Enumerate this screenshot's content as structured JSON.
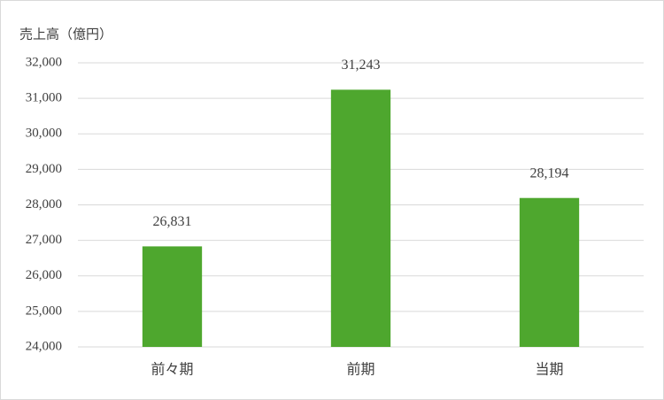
{
  "chart_data": {
    "type": "bar",
    "y_axis_label": "売上高（億円）",
    "categories": [
      "前々期",
      "前期",
      "当期"
    ],
    "values": [
      26831,
      31243,
      28194
    ],
    "value_labels": [
      "26,831",
      "31,243",
      "28,194"
    ],
    "color": "#4ea72e",
    "ylim": [
      24000,
      32000
    ],
    "yticks": [
      {
        "value": 24000,
        "label": "24,000"
      },
      {
        "value": 25000,
        "label": "25,000"
      },
      {
        "value": 26000,
        "label": "26,000"
      },
      {
        "value": 27000,
        "label": "27,000"
      },
      {
        "value": 28000,
        "label": "28,000"
      },
      {
        "value": 29000,
        "label": "29,000"
      },
      {
        "value": 30000,
        "label": "30,000"
      },
      {
        "value": 31000,
        "label": "31,000"
      },
      {
        "value": 32000,
        "label": "32,000"
      }
    ],
    "grid": true
  }
}
